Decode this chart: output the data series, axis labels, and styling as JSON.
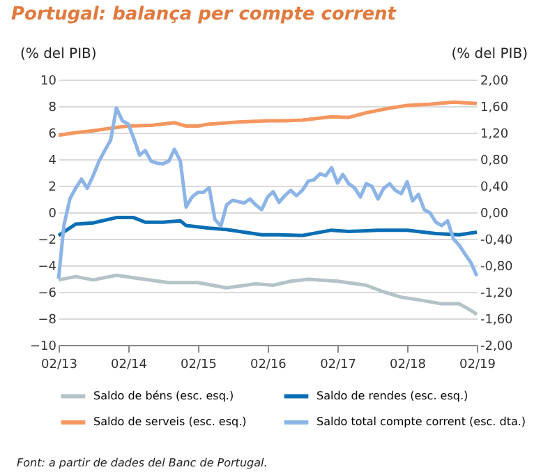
{
  "chart_data": {
    "type": "line",
    "title": "Portugal: balança per compte corrent",
    "ylabel": "(% del PIB)",
    "y2label": "(% del PIB)",
    "xlim": [
      "2013-02",
      "2019-02"
    ],
    "xticks": [
      {
        "value": "2013-02",
        "label": "02/13"
      },
      {
        "value": "2014-02",
        "label": "02/14"
      },
      {
        "value": "2015-02",
        "label": "02/15"
      },
      {
        "value": "2016-02",
        "label": "02/16"
      },
      {
        "value": "2017-02",
        "label": "02/17"
      },
      {
        "value": "2018-02",
        "label": "02/18"
      },
      {
        "value": "2019-02",
        "label": "02/19"
      }
    ],
    "ylim": [
      -10,
      10
    ],
    "yticks": [
      -10,
      -8,
      -6,
      -4,
      -2,
      0,
      2,
      4,
      6,
      8,
      10
    ],
    "y2lim": [
      -2,
      2
    ],
    "y2ticks": [
      {
        "value": -2,
        "label": "-2,00"
      },
      {
        "value": -1.6,
        "label": "-1,60"
      },
      {
        "value": -1.2,
        "label": "-1,20"
      },
      {
        "value": -0.8,
        "label": "-0,80"
      },
      {
        "value": -0.4,
        "label": "-0,40"
      },
      {
        "value": 0,
        "label": "0,00"
      },
      {
        "value": 0.4,
        "label": "0,40"
      },
      {
        "value": 0.8,
        "label": "0,80"
      },
      {
        "value": 1.2,
        "label": "1,20"
      },
      {
        "value": 1.6,
        "label": "1,60"
      },
      {
        "value": 2,
        "label": "2,00"
      }
    ],
    "grid": "y",
    "legend": "bottom",
    "marker": "none",
    "series": [
      {
        "name": "Saldo de béns (esc. esq.)",
        "color": "#b4c3c8",
        "x": [
          "2013-02",
          "2013-05",
          "2013-08",
          "2013-12",
          "2014-04",
          "2014-09",
          "2015-02",
          "2015-07",
          "2015-12",
          "2016-03",
          "2016-06",
          "2016-09",
          "2017-02",
          "2017-07",
          "2017-10",
          "2018-01",
          "2018-04",
          "2018-08",
          "2018-11",
          "2019-01",
          "2019-02"
        ],
        "values": [
          -5.1,
          -4.85,
          -5.1,
          -4.75,
          -5.0,
          -5.3,
          -5.3,
          -5.7,
          -5.4,
          -5.5,
          -5.2,
          -5.05,
          -5.2,
          -5.5,
          -6.0,
          -6.4,
          -6.6,
          -6.9,
          -6.9,
          -7.4,
          -7.7
        ]
      },
      {
        "name": "Saldo de rendes (esc. esq.)",
        "color": "#0a6eb4",
        "x": [
          "2013-02",
          "2013-05",
          "2013-08",
          "2013-12",
          "2014-03",
          "2014-05",
          "2014-08",
          "2014-11",
          "2014-12",
          "2015-04",
          "2015-07",
          "2015-10",
          "2016-01",
          "2016-04",
          "2016-08",
          "2017-01",
          "2017-04",
          "2017-09",
          "2018-02",
          "2018-07",
          "2018-11",
          "2019-02"
        ],
        "values": [
          -1.75,
          -0.9,
          -0.8,
          -0.4,
          -0.4,
          -0.75,
          -0.75,
          -0.65,
          -1.0,
          -1.2,
          -1.3,
          -1.5,
          -1.7,
          -1.7,
          -1.75,
          -1.35,
          -1.45,
          -1.35,
          -1.35,
          -1.6,
          -1.7,
          -1.5
        ]
      },
      {
        "name": "Saldo de serveis (esc. esq.)",
        "color": "#f5965f",
        "x": [
          "2013-02",
          "2013-05",
          "2013-08",
          "2013-12",
          "2014-02",
          "2014-06",
          "2014-10",
          "2014-12",
          "2015-02",
          "2015-04",
          "2015-09",
          "2016-02",
          "2016-05",
          "2016-08",
          "2017-01",
          "2017-04",
          "2017-07",
          "2017-11",
          "2018-02",
          "2018-06",
          "2018-10",
          "2019-02"
        ],
        "values": [
          5.8,
          6.0,
          6.15,
          6.4,
          6.5,
          6.55,
          6.75,
          6.5,
          6.5,
          6.65,
          6.8,
          6.9,
          6.9,
          6.95,
          7.2,
          7.15,
          7.5,
          7.85,
          8.05,
          8.15,
          8.3,
          8.2
        ]
      },
      {
        "name": "Saldo total compte corrent (esc. dta.)",
        "color": "#8cb4e6",
        "axis": "y2",
        "x": [
          "2013-02",
          "2013-03",
          "2013-04",
          "2013-05",
          "2013-06",
          "2013-07",
          "2013-08",
          "2013-09",
          "2013-10",
          "2013-11",
          "2013-12",
          "2014-01",
          "2014-02",
          "2014-03",
          "2014-04",
          "2014-05",
          "2014-06",
          "2014-07",
          "2014-08",
          "2014-09",
          "2014-10",
          "2014-11",
          "2014-12",
          "2015-01",
          "2015-02",
          "2015-03",
          "2015-04",
          "2015-05",
          "2015-06",
          "2015-07",
          "2015-08",
          "2015-09",
          "2015-10",
          "2015-11",
          "2015-12",
          "2016-01",
          "2016-02",
          "2016-03",
          "2016-04",
          "2016-05",
          "2016-06",
          "2016-07",
          "2016-08",
          "2016-09",
          "2016-10",
          "2016-11",
          "2016-12",
          "2017-01",
          "2017-02",
          "2017-03",
          "2017-04",
          "2017-05",
          "2017-06",
          "2017-07",
          "2017-08",
          "2017-09",
          "2017-10",
          "2017-11",
          "2017-12",
          "2018-01",
          "2018-02",
          "2018-03",
          "2018-04",
          "2018-05",
          "2018-06",
          "2018-07",
          "2018-08",
          "2018-09",
          "2018-10",
          "2018-11",
          "2018-12",
          "2019-01",
          "2019-02"
        ],
        "values": [
          -1.0,
          -0.2,
          0.2,
          0.36,
          0.5,
          0.36,
          0.55,
          0.77,
          0.93,
          1.09,
          1.57,
          1.38,
          1.33,
          1.12,
          0.86,
          0.93,
          0.77,
          0.74,
          0.73,
          0.77,
          0.95,
          0.77,
          0.08,
          0.23,
          0.3,
          0.3,
          0.37,
          -0.11,
          -0.21,
          0.11,
          0.18,
          0.16,
          0.14,
          0.2,
          0.11,
          0.04,
          0.23,
          0.31,
          0.15,
          0.25,
          0.33,
          0.25,
          0.33,
          0.47,
          0.49,
          0.58,
          0.55,
          0.67,
          0.44,
          0.57,
          0.43,
          0.37,
          0.23,
          0.43,
          0.39,
          0.2,
          0.36,
          0.43,
          0.33,
          0.28,
          0.46,
          0.17,
          0.27,
          0.04,
          -0.01,
          -0.15,
          -0.2,
          -0.13,
          -0.4,
          -0.5,
          -0.63,
          -0.76,
          -0.96
        ]
      }
    ],
    "annotations": [
      "Font: a partir de dades del Banc de Portugal."
    ]
  }
}
